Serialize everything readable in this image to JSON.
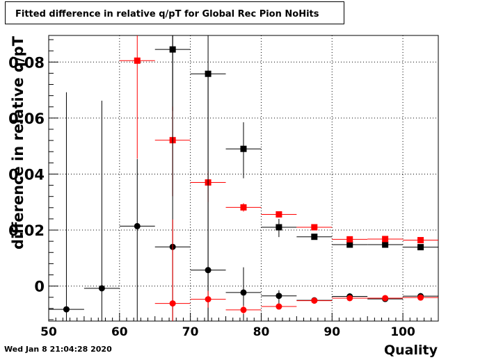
{
  "title": "Fitted difference in relative q/pT for Global Rec Pion NoHits",
  "datestamp": "Wed Jan  8 21:04:28 2020",
  "chart_data": {
    "type": "scatter",
    "xlabel": "Quality",
    "ylabel": "difference in relative q/pT",
    "xlim": [
      50,
      105
    ],
    "ylim": [
      -0.0125,
      0.0895
    ],
    "grid": true,
    "x_ticks": [
      50,
      60,
      70,
      80,
      90,
      100
    ],
    "x_tick_labels": [
      "50",
      "60",
      "70",
      "80",
      "90",
      "100"
    ],
    "y_ticks": [
      0,
      0.02,
      0.04,
      0.06,
      0.08
    ],
    "y_tick_labels": [
      "0",
      "0.02",
      "0.04",
      "0.06",
      "0.08"
    ],
    "series": [
      {
        "color": "#000000",
        "marker": "square",
        "points": [
          {
            "x": 67.5,
            "xerr": 2.5,
            "y": 0.0845,
            "yerr_low": 0.022,
            "yerr_high": 0.01
          },
          {
            "x": 72.5,
            "xerr": 2.5,
            "y": 0.0758,
            "yerr_low": 0.09,
            "yerr_high": 0.016
          },
          {
            "x": 77.5,
            "xerr": 2.5,
            "y": 0.049,
            "yerr_low": 0.0105,
            "yerr_high": 0.0095
          },
          {
            "x": 82.5,
            "xerr": 2.5,
            "y": 0.021,
            "yerr_low": 0.0035,
            "yerr_high": 0.003
          },
          {
            "x": 87.5,
            "xerr": 2.5,
            "y": 0.0176,
            "yerr_low": 0.001,
            "yerr_high": 0.001
          },
          {
            "x": 92.5,
            "xerr": 2.5,
            "y": 0.0148,
            "yerr_low": 0.0007,
            "yerr_high": 0.0007
          },
          {
            "x": 97.5,
            "xerr": 2.5,
            "y": 0.0148,
            "yerr_low": 0.0005,
            "yerr_high": 0.0005
          },
          {
            "x": 102.5,
            "xerr": 2.5,
            "y": 0.0139,
            "yerr_low": 0.0005,
            "yerr_high": 0.0005
          }
        ]
      },
      {
        "color": "#ff0000",
        "marker": "square",
        "points": [
          {
            "x": 62.5,
            "xerr": 2.5,
            "y": 0.0805,
            "yerr_low": 0.035,
            "yerr_high": 0.012
          },
          {
            "x": 67.5,
            "xerr": 2.5,
            "y": 0.0521,
            "yerr_low": 0.02,
            "yerr_high": 0.012
          },
          {
            "x": 72.5,
            "xerr": 2.5,
            "y": 0.037,
            "yerr_low": 0.007,
            "yerr_high": 0.004
          },
          {
            "x": 77.5,
            "xerr": 2.5,
            "y": 0.0281,
            "yerr_low": 0.0015,
            "yerr_high": 0.0015
          },
          {
            "x": 82.5,
            "xerr": 2.5,
            "y": 0.0256,
            "yerr_low": 0.001,
            "yerr_high": 0.001
          },
          {
            "x": 87.5,
            "xerr": 2.5,
            "y": 0.021,
            "yerr_low": 0.0006,
            "yerr_high": 0.0006
          },
          {
            "x": 92.5,
            "xerr": 2.5,
            "y": 0.0167,
            "yerr_low": 0.0004,
            "yerr_high": 0.0004
          },
          {
            "x": 97.5,
            "xerr": 2.5,
            "y": 0.0168,
            "yerr_low": 0.0004,
            "yerr_high": 0.0004
          },
          {
            "x": 102.5,
            "xerr": 2.5,
            "y": 0.0164,
            "yerr_low": 0.0004,
            "yerr_high": 0.0004
          }
        ]
      },
      {
        "color": "#000000",
        "marker": "circle",
        "points": [
          {
            "x": 52.5,
            "xerr": 2.5,
            "y": -0.0083,
            "yerr_low": 0.005,
            "yerr_high": 0.0775
          },
          {
            "x": 57.5,
            "xerr": 2.5,
            "y": -0.0008,
            "yerr_low": 0.012,
            "yerr_high": 0.067
          },
          {
            "x": 62.5,
            "xerr": 2.5,
            "y": 0.0214,
            "yerr_low": 0.034,
            "yerr_high": 0.024
          },
          {
            "x": 67.5,
            "xerr": 2.5,
            "y": 0.014,
            "yerr_low": 0.027,
            "yerr_high": 0.076
          },
          {
            "x": 72.5,
            "xerr": 2.5,
            "y": 0.0057,
            "yerr_low": 0.018,
            "yerr_high": 0.07
          },
          {
            "x": 77.5,
            "xerr": 2.5,
            "y": -0.0023,
            "yerr_low": 0.01,
            "yerr_high": 0.009
          },
          {
            "x": 82.5,
            "xerr": 2.5,
            "y": -0.0035,
            "yerr_low": 0.004,
            "yerr_high": 0.002
          },
          {
            "x": 87.5,
            "xerr": 2.5,
            "y": -0.0051,
            "yerr_low": 0.001,
            "yerr_high": 0.001
          },
          {
            "x": 92.5,
            "xerr": 2.5,
            "y": -0.0037,
            "yerr_low": 0.0005,
            "yerr_high": 0.0005
          },
          {
            "x": 97.5,
            "xerr": 2.5,
            "y": -0.0046,
            "yerr_low": 0.0005,
            "yerr_high": 0.0005
          },
          {
            "x": 102.5,
            "xerr": 2.5,
            "y": -0.0036,
            "yerr_low": 0.0005,
            "yerr_high": 0.0005
          }
        ]
      },
      {
        "color": "#ff0000",
        "marker": "circle",
        "points": [
          {
            "x": 67.5,
            "xerr": 2.5,
            "y": -0.0062,
            "yerr_low": 0.009,
            "yerr_high": 0.03
          },
          {
            "x": 72.5,
            "xerr": 2.5,
            "y": -0.0047,
            "yerr_low": 0.003,
            "yerr_high": 0.003
          },
          {
            "x": 77.5,
            "xerr": 2.5,
            "y": -0.0085,
            "yerr_low": 0.0015,
            "yerr_high": 0.0015
          },
          {
            "x": 82.5,
            "xerr": 2.5,
            "y": -0.0073,
            "yerr_low": 0.001,
            "yerr_high": 0.001
          },
          {
            "x": 87.5,
            "xerr": 2.5,
            "y": -0.0052,
            "yerr_low": 0.0006,
            "yerr_high": 0.0006
          },
          {
            "x": 92.5,
            "xerr": 2.5,
            "y": -0.0043,
            "yerr_low": 0.0004,
            "yerr_high": 0.0004
          },
          {
            "x": 97.5,
            "xerr": 2.5,
            "y": -0.0043,
            "yerr_low": 0.0004,
            "yerr_high": 0.0004
          },
          {
            "x": 102.5,
            "xerr": 2.5,
            "y": -0.0041,
            "yerr_low": 0.0004,
            "yerr_high": 0.0004
          }
        ]
      }
    ]
  }
}
